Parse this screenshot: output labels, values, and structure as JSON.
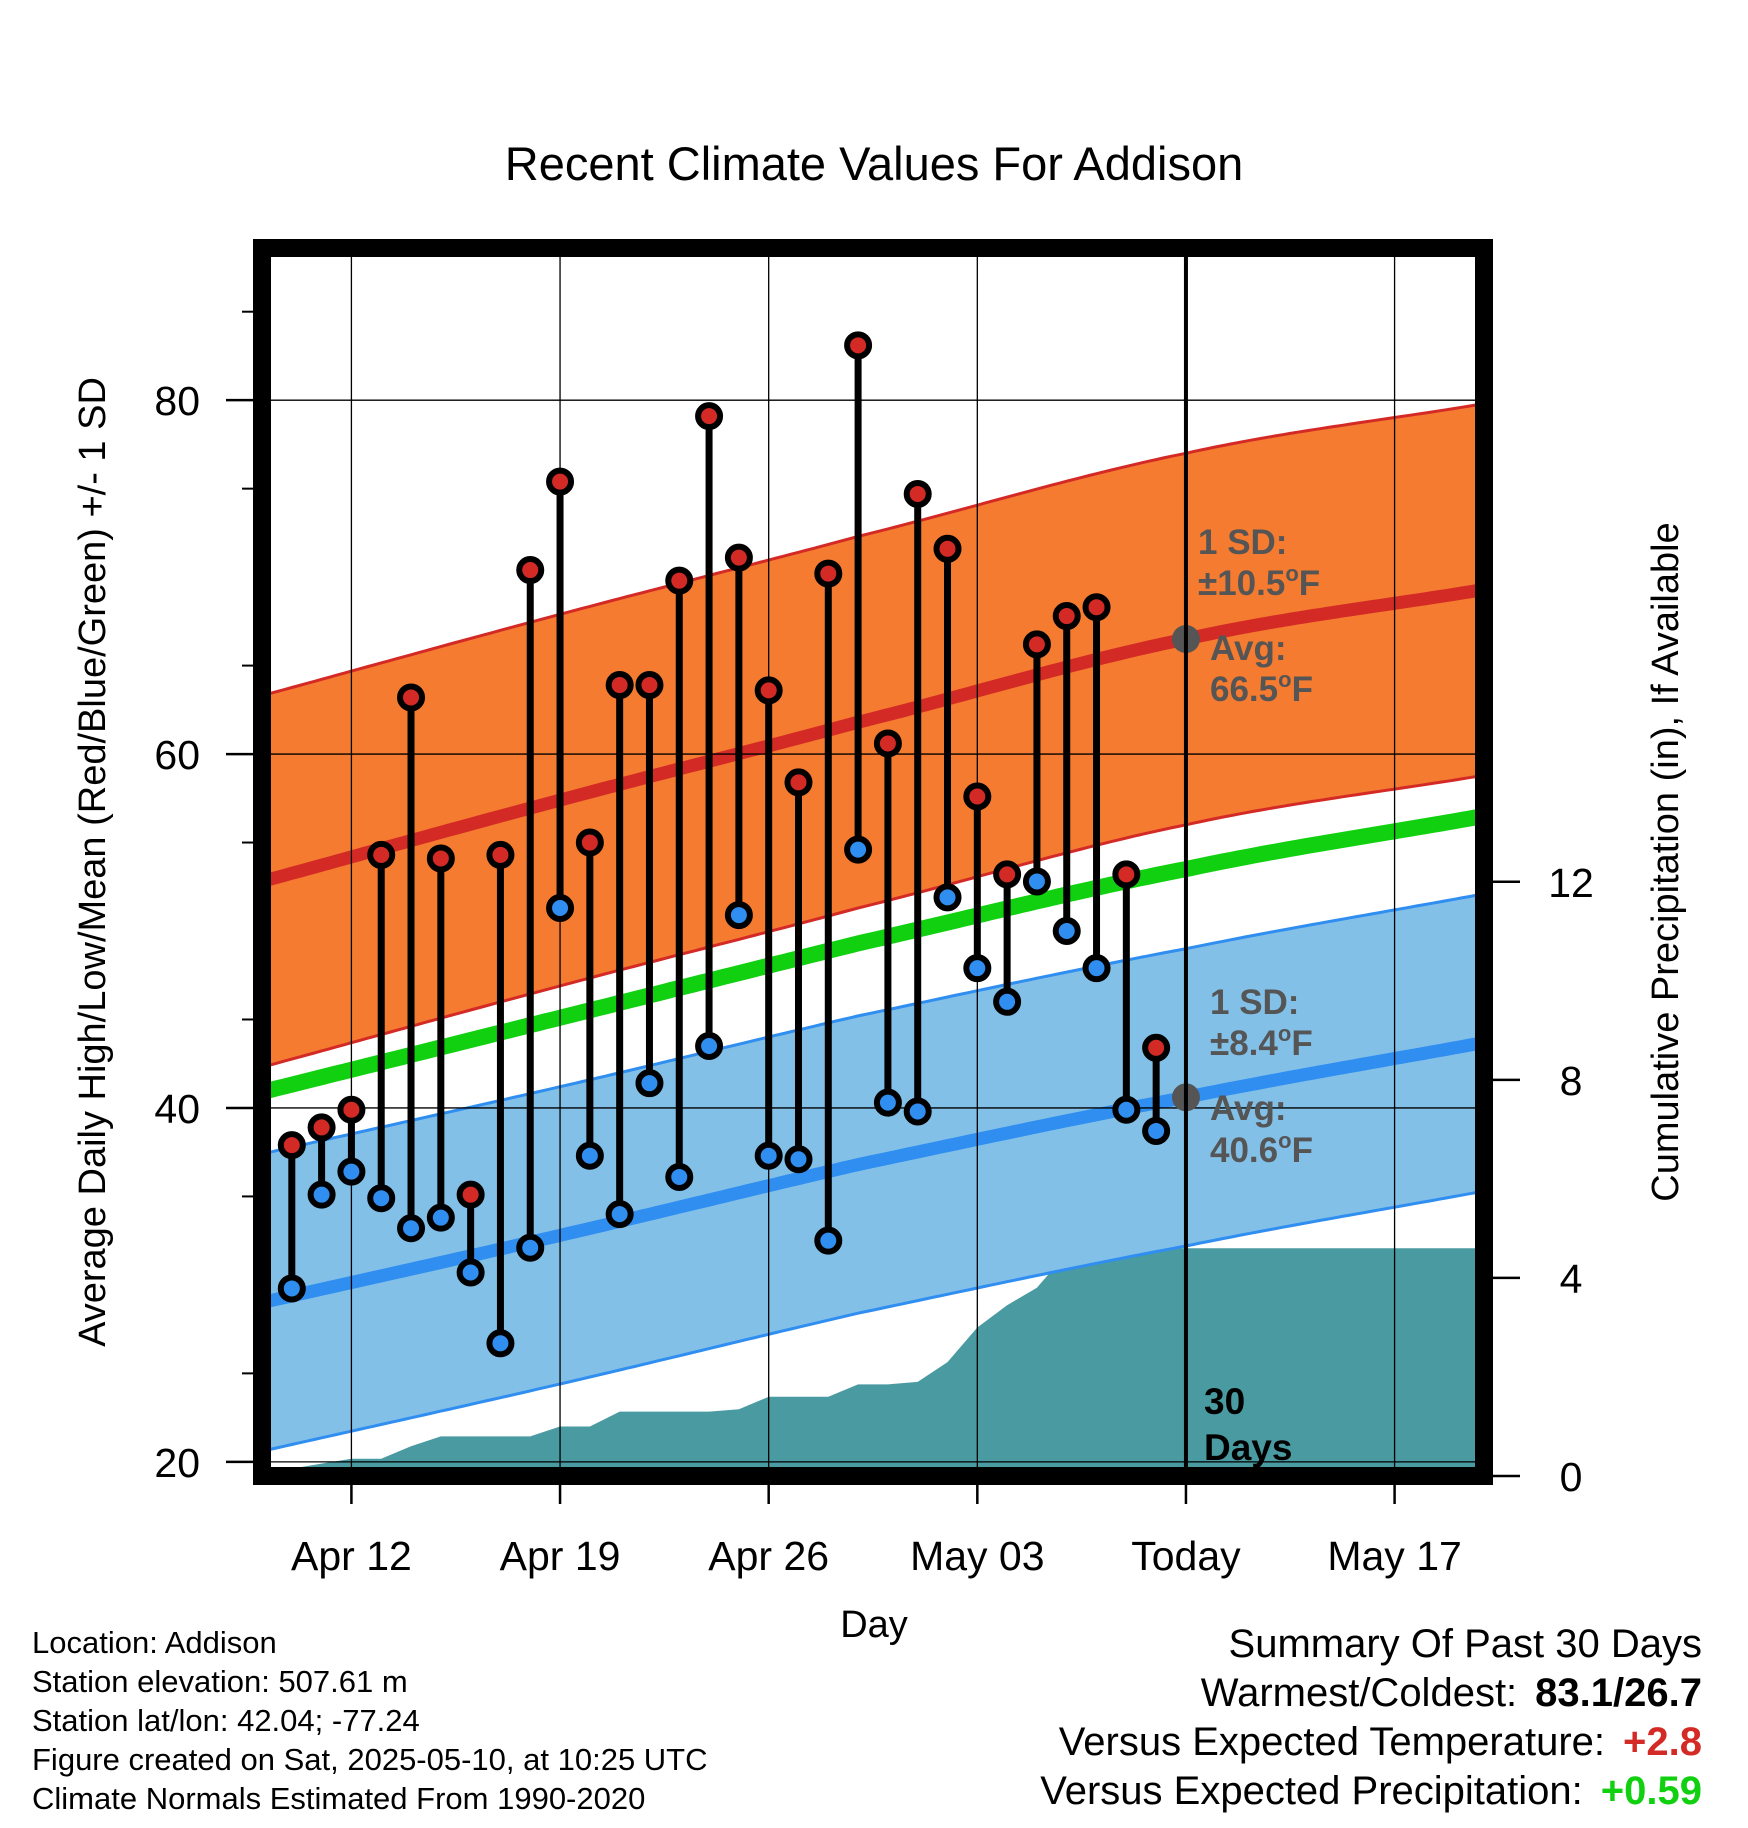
{
  "chart_data": {
    "type": "line",
    "title": "Recent Climate Values For Addison",
    "xlabel": "Day",
    "ylabel": "Average Daily High/Low/Mean (Red/Blue/Green) +/- 1 SD",
    "y2label": "Cumulative Precipitation (in), If Available",
    "ylim": [
      19.2,
      88.6
    ],
    "y2lim": [
      0,
      24.8
    ],
    "x_start": "2025-04-09",
    "x_end": "2025-05-20",
    "x_ticks": [
      {
        "date": "2025-04-12",
        "label": "Apr 12"
      },
      {
        "date": "2025-04-19",
        "label": "Apr 19"
      },
      {
        "date": "2025-04-26",
        "label": "Apr 26"
      },
      {
        "date": "2025-05-03",
        "label": "May 03"
      },
      {
        "date": "2025-05-10",
        "label": "Today"
      },
      {
        "date": "2025-05-17",
        "label": "May 17"
      }
    ],
    "y_ticks": [
      "20",
      "40",
      "60",
      "80"
    ],
    "y2_ticks": [
      "0",
      "4",
      "8",
      "12"
    ],
    "today": "2025-05-10",
    "grid": true,
    "colors": {
      "high": "#d42a26",
      "high_band": "#f47b30",
      "low": "#2f8ef0",
      "low_band": "#82c0e8",
      "mean": "#10d010",
      "precip": "#4a9aa2",
      "ann": "#555555"
    },
    "normal_high": {
      "dates": [
        "2025-04-09",
        "2025-04-19",
        "2025-04-29",
        "2025-05-10",
        "2025-05-20"
      ],
      "mean": [
        52.8,
        57.4,
        61.8,
        66.5,
        69.3
      ],
      "sd": 10.5
    },
    "normal_low": {
      "dates": [
        "2025-04-09",
        "2025-04-19",
        "2025-04-29",
        "2025-05-10",
        "2025-05-20"
      ],
      "mean": [
        29.0,
        32.8,
        36.8,
        40.6,
        43.7
      ],
      "sd": 8.4
    },
    "normal_mean": {
      "dates": [
        "2025-04-09",
        "2025-04-19",
        "2025-04-29",
        "2025-05-10",
        "2025-05-20"
      ],
      "values": [
        40.9,
        45.1,
        49.3,
        53.5,
        56.5
      ]
    },
    "daily": {
      "dates": [
        "2025-04-10",
        "2025-04-11",
        "2025-04-12",
        "2025-04-13",
        "2025-04-14",
        "2025-04-15",
        "2025-04-16",
        "2025-04-17",
        "2025-04-18",
        "2025-04-19",
        "2025-04-20",
        "2025-04-21",
        "2025-04-22",
        "2025-04-23",
        "2025-04-24",
        "2025-04-25",
        "2025-04-26",
        "2025-04-27",
        "2025-04-28",
        "2025-04-29",
        "2025-04-30",
        "2025-05-01",
        "2025-05-02",
        "2025-05-03",
        "2025-05-04",
        "2025-05-05",
        "2025-05-06",
        "2025-05-07",
        "2025-05-08",
        "2025-05-09"
      ],
      "high": [
        37.9,
        38.9,
        39.9,
        54.3,
        63.2,
        54.1,
        35.1,
        54.3,
        70.4,
        75.4,
        55.0,
        63.9,
        63.9,
        69.8,
        79.1,
        71.1,
        63.6,
        58.4,
        70.2,
        83.1,
        60.6,
        74.7,
        71.6,
        57.6,
        53.2,
        66.2,
        67.8,
        68.3,
        53.2,
        43.4
      ],
      "low": [
        29.8,
        35.1,
        36.4,
        34.9,
        33.2,
        33.8,
        30.7,
        26.7,
        32.1,
        51.3,
        37.3,
        34.0,
        41.4,
        36.1,
        43.5,
        50.9,
        37.3,
        37.1,
        32.5,
        54.6,
        40.3,
        39.8,
        51.9,
        47.9,
        46.0,
        52.8,
        50.0,
        47.9,
        39.9,
        38.7
      ]
    },
    "precip": {
      "dates": [
        "2025-04-09",
        "2025-04-10",
        "2025-04-11",
        "2025-04-12",
        "2025-04-13",
        "2025-04-14",
        "2025-04-15",
        "2025-04-16",
        "2025-04-17",
        "2025-04-18",
        "2025-04-19",
        "2025-04-20",
        "2025-04-21",
        "2025-04-22",
        "2025-04-23",
        "2025-04-24",
        "2025-04-25",
        "2025-04-26",
        "2025-04-27",
        "2025-04-28",
        "2025-04-29",
        "2025-04-30",
        "2025-05-01",
        "2025-05-02",
        "2025-05-03",
        "2025-05-04",
        "2025-05-05",
        "2025-05-06",
        "2025-05-07",
        "2025-05-08",
        "2025-05-09",
        "2025-05-10",
        "2025-05-20"
      ],
      "values": [
        0.0,
        0.15,
        0.25,
        0.35,
        0.35,
        0.6,
        0.8,
        0.8,
        0.8,
        0.8,
        1.0,
        1.0,
        1.3,
        1.3,
        1.3,
        1.3,
        1.35,
        1.6,
        1.6,
        1.6,
        1.85,
        1.85,
        1.9,
        2.3,
        3.0,
        3.45,
        3.8,
        4.5,
        4.52,
        4.55,
        4.6,
        4.6,
        4.6
      ]
    }
  },
  "annotations": {
    "high_sd_line1": "1 SD:",
    "high_sd_line2": "±10.5",
    "high_avg_line1": "Avg:",
    "high_avg_line2": "66.5",
    "low_sd_line1": "1 SD:",
    "low_sd_line2": "±8.4",
    "low_avg_line1": "Avg:",
    "low_avg_line2": "40.6",
    "deg": "o",
    "unit": "F",
    "days_line1": "30",
    "days_line2": "Days"
  },
  "info": {
    "location": "Location: Addison",
    "elevation": "Station elevation: 507.61 m",
    "latlon": "Station lat/lon: 42.04; -77.24",
    "created": "Figure created on Sat, 2025-05-10, at 10:25 UTC",
    "normals": "Climate Normals Estimated From 1990-2020"
  },
  "summary": {
    "title": "Summary Of Past 30 Days",
    "warm_cold_label": "Warmest/Coldest:",
    "warm_cold_value": "83.1/26.7",
    "temp_label": "Versus Expected Temperature:",
    "temp_value": "+2.8",
    "temp_color": "#d42a26",
    "precip_label": "Versus Expected Precipitation:",
    "precip_value": "+0.59",
    "precip_color": "#10d010"
  }
}
